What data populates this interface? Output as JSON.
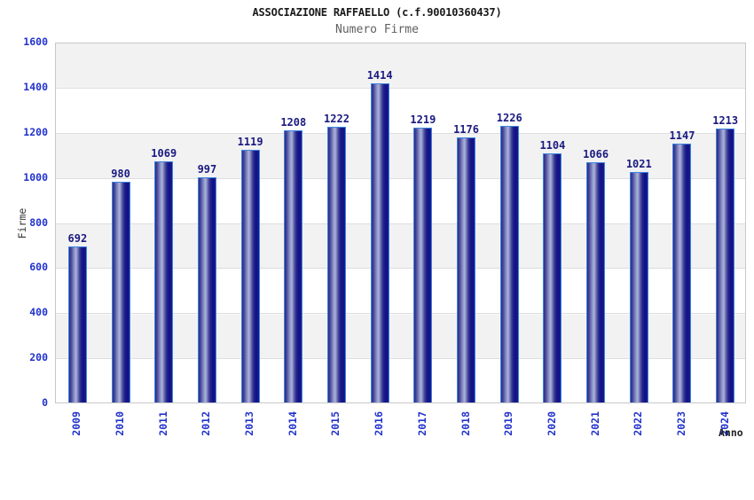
{
  "header": {
    "title": "ASSOCIAZIONE RAFFAELLO (c.f.90010360437)",
    "subtitle": "Numero Firme"
  },
  "chart_data": {
    "type": "bar",
    "title": "ASSOCIAZIONE RAFFAELLO (c.f.90010360437)",
    "subtitle": "Numero Firme",
    "categories": [
      "2009",
      "2010",
      "2011",
      "2012",
      "2013",
      "2014",
      "2015",
      "2016",
      "2017",
      "2018",
      "2019",
      "2020",
      "2021",
      "2022",
      "2023",
      "2024"
    ],
    "values": [
      692,
      980,
      1069,
      997,
      1119,
      1208,
      1222,
      1414,
      1219,
      1176,
      1226,
      1104,
      1066,
      1021,
      1147,
      1213
    ],
    "xlabel": "Anno",
    "ylabel": "Firme",
    "ylim": [
      0,
      1600
    ],
    "yticks": [
      0,
      200,
      400,
      600,
      800,
      1000,
      1200,
      1400,
      1600
    ],
    "grid": true,
    "legend": false,
    "bar_value_labels": true
  },
  "colors": {
    "tick_label": "#2233cc",
    "category_label": "#2233cc",
    "value_label": "#1a1a80",
    "title": "#1a1a1a",
    "subtitle": "#606060",
    "band_gray": "#f2f2f2",
    "band_white": "#ffffff",
    "gridline": "#dedede",
    "plot_border": "#c8c8c8",
    "bar_border": "#3d85e0",
    "bar_dark": "#1b1b8c",
    "bar_highlight": "#aab2dc"
  }
}
